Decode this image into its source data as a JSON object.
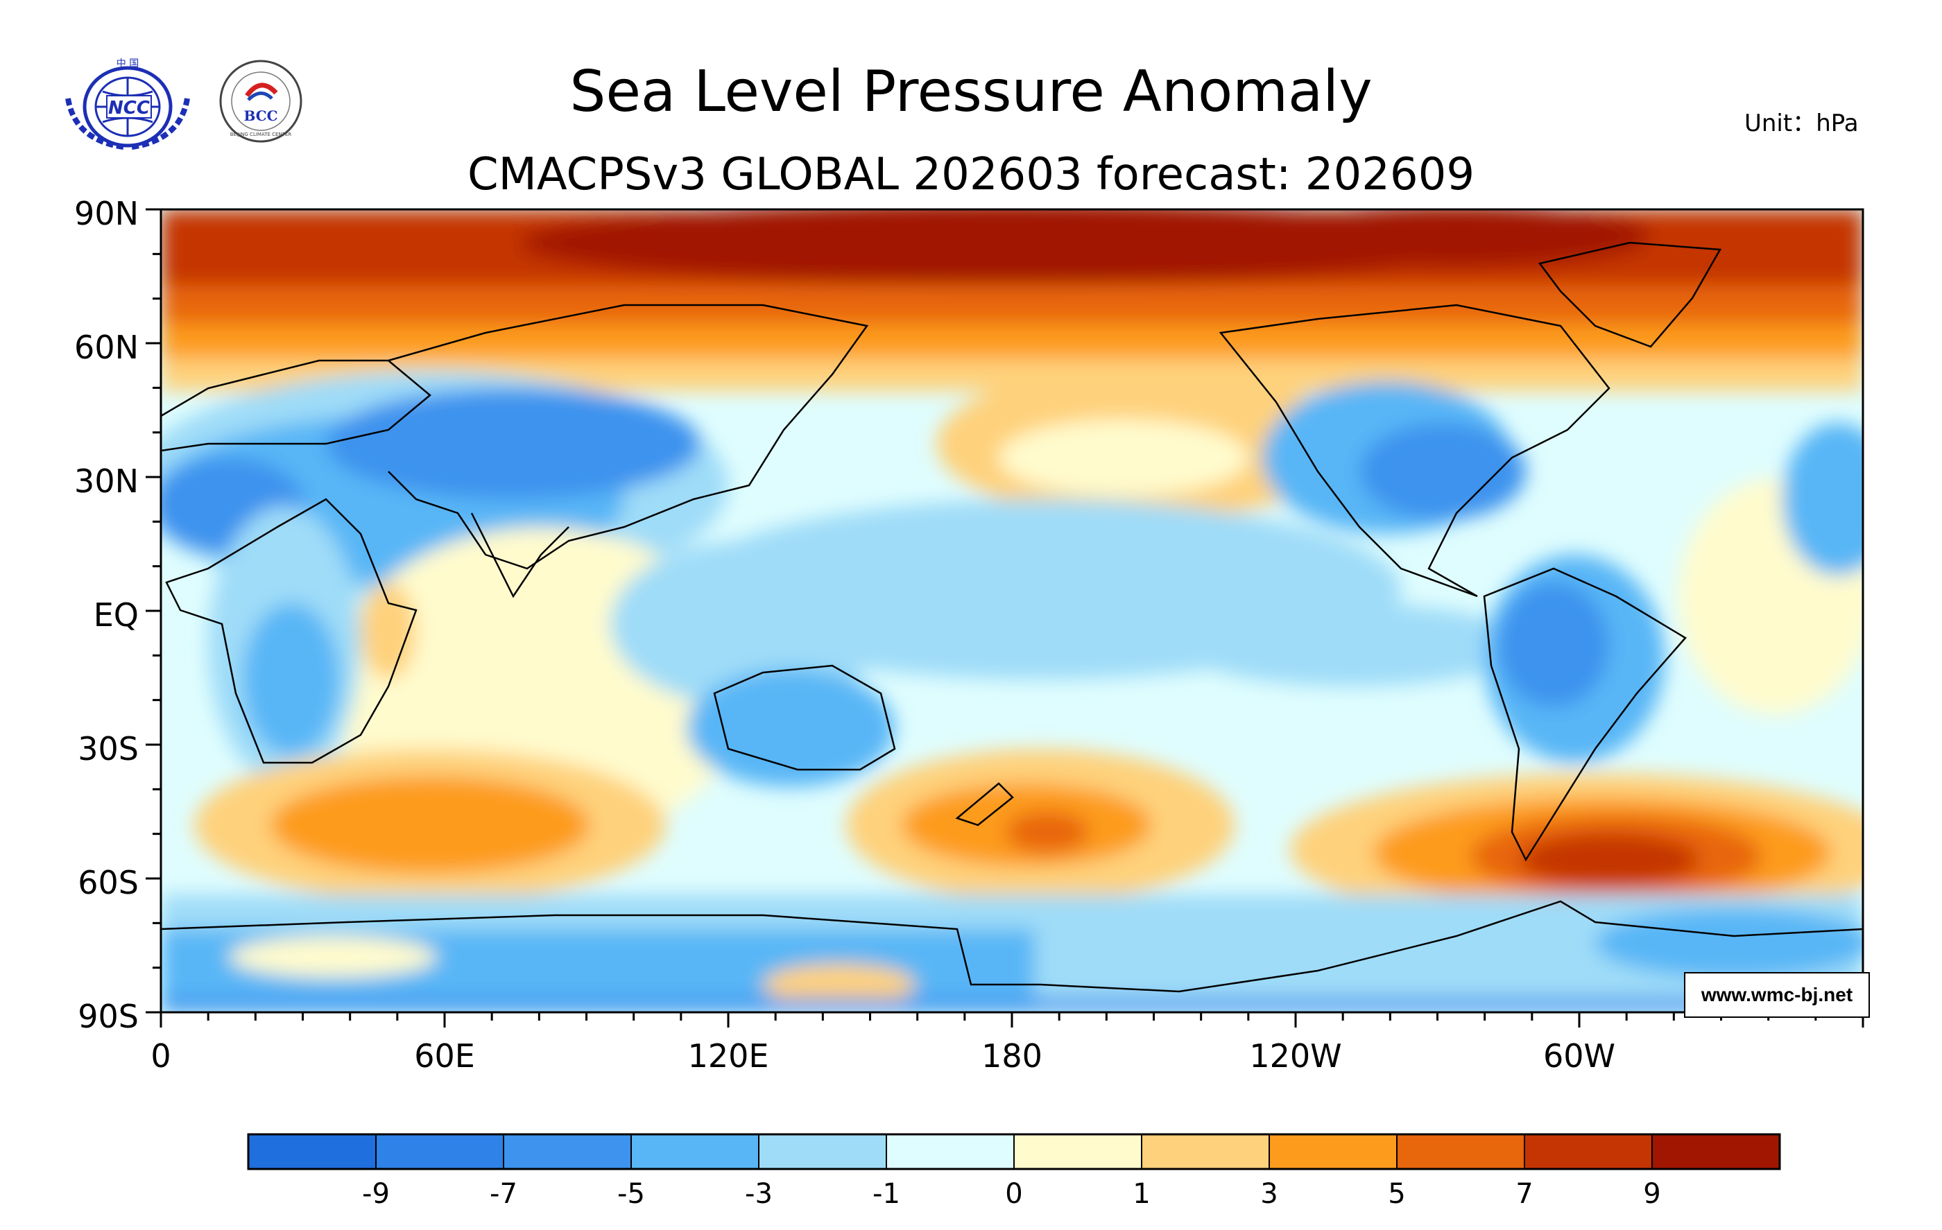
{
  "title": "Sea Level Pressure Anomaly",
  "subtitle": "CMACPSv3 GLOBAL 202603 forecast: 202609",
  "unit": "Unit：hPa",
  "credit": "www.wmc-bj.net",
  "logos": {
    "ncc": "NCC",
    "ncc_top": "中 国",
    "bcc": "BCC",
    "bcc_ring": "BEIJING CLIMATE CENTER"
  },
  "lat_ticks": [
    "90N",
    "60N",
    "30N",
    "EQ",
    "30S",
    "60S",
    "90S"
  ],
  "lon_ticks": [
    "0",
    "60E",
    "120E",
    "180",
    "120W",
    "60W"
  ],
  "colorbar": {
    "colors": [
      "#1f6fdf",
      "#2f82e8",
      "#3d93ee",
      "#59b6f6",
      "#9fdcf8",
      "#dffdfe",
      "#fffbcd",
      "#fed17c",
      "#fd9b1c",
      "#e8660c",
      "#c53504",
      "#a11600"
    ],
    "labels": [
      "-9",
      "-7",
      "-5",
      "-3",
      "-1",
      "0",
      "1",
      "3",
      "5",
      "7",
      "9"
    ]
  }
}
